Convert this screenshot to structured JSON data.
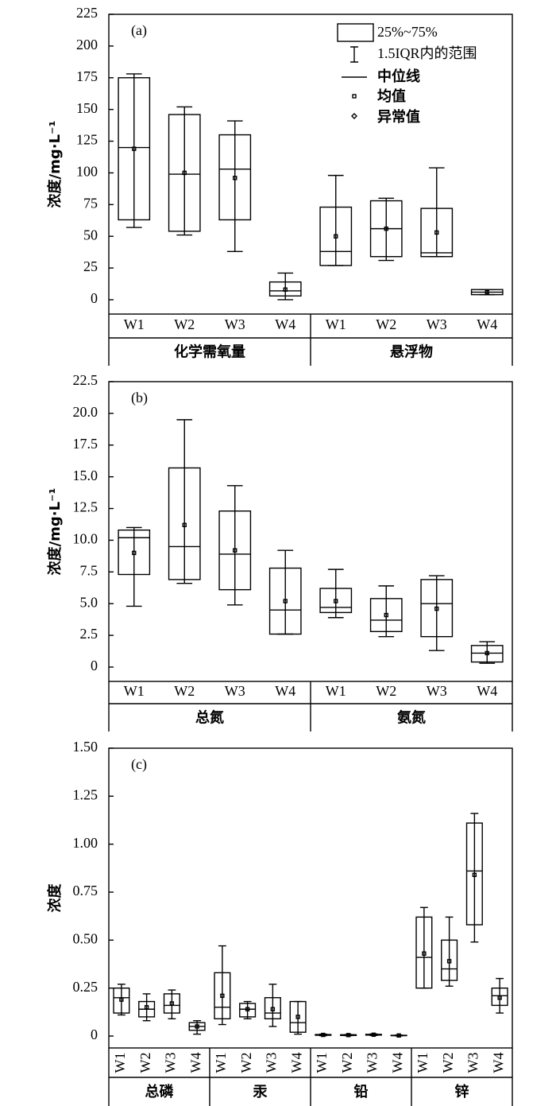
{
  "chart_data": [
    {
      "type": "box",
      "panel_label": "(a)",
      "ylabel": "浓度/mg·L⁻¹",
      "ylim": [
        -11.3,
        225
      ],
      "yticks": [
        0,
        25,
        50,
        75,
        100,
        125,
        150,
        175,
        200,
        225
      ],
      "categories": [
        "W1",
        "W2",
        "W3",
        "W4",
        "W1",
        "W2",
        "W3",
        "W4"
      ],
      "groups": [
        "化学需氧量",
        "悬浮物"
      ],
      "legend": [
        "25%~75%",
        "1.5IQR内的范围",
        "中位线",
        "均值",
        "异常值"
      ],
      "boxes": [
        {
          "whislo": 57,
          "q1": 63,
          "med": 120,
          "q3": 175,
          "whishi": 178,
          "mean": 119
        },
        {
          "whislo": 51,
          "q1": 54,
          "med": 99,
          "q3": 146,
          "whishi": 152,
          "mean": 100
        },
        {
          "whislo": 38,
          "q1": 63,
          "med": 103,
          "q3": 130,
          "whishi": 141,
          "mean": 96
        },
        {
          "whislo": 0,
          "q1": 3,
          "med": 7,
          "q3": 14,
          "whishi": 21,
          "mean": 8
        },
        {
          "whislo": 27,
          "q1": 27,
          "med": 38,
          "q3": 73,
          "whishi": 98,
          "mean": 50
        },
        {
          "whislo": 31,
          "q1": 34,
          "med": 56,
          "q3": 78,
          "whishi": 80,
          "mean": 56
        },
        {
          "whislo": 34,
          "q1": 34,
          "med": 37,
          "q3": 72,
          "whishi": 104,
          "mean": 53
        },
        {
          "whislo": 4,
          "q1": 4,
          "med": 6,
          "q3": 8,
          "whishi": 8,
          "mean": 6
        }
      ]
    },
    {
      "type": "box",
      "panel_label": "(b)",
      "ylabel": "浓度/mg·L⁻¹",
      "ylim": [
        -1.13,
        22.5
      ],
      "yticks": [
        0,
        2.5,
        {
          "value": 5,
          "label": "5.0"
        },
        7.5,
        {
          "value": 10,
          "label": "10.0"
        },
        12.5,
        {
          "value": 15,
          "label": "15.0"
        },
        17.5,
        {
          "value": 20,
          "label": "20.0"
        },
        22.5
      ],
      "categories": [
        "W1",
        "W2",
        "W3",
        "W4",
        "W1",
        "W2",
        "W3",
        "W4"
      ],
      "groups": [
        "总氮",
        "氨氮"
      ],
      "boxes": [
        {
          "whislo": 4.8,
          "q1": 7.3,
          "med": 10.2,
          "q3": 10.8,
          "whishi": 11.0,
          "mean": 9.0
        },
        {
          "whislo": 6.6,
          "q1": 6.9,
          "med": 9.5,
          "q3": 15.7,
          "whishi": 19.5,
          "mean": 11.2
        },
        {
          "whislo": 4.9,
          "q1": 6.1,
          "med": 8.9,
          "q3": 12.3,
          "whishi": 14.3,
          "mean": 9.2
        },
        {
          "whislo": 2.6,
          "q1": 2.6,
          "med": 4.5,
          "q3": 7.8,
          "whishi": 9.2,
          "mean": 5.2
        },
        {
          "whislo": 3.9,
          "q1": 4.3,
          "med": 4.7,
          "q3": 6.2,
          "whishi": 7.7,
          "mean": 5.2
        },
        {
          "whislo": 2.4,
          "q1": 2.8,
          "med": 3.7,
          "q3": 5.4,
          "whishi": 6.4,
          "mean": 4.1
        },
        {
          "whislo": 1.3,
          "q1": 2.4,
          "med": 5.0,
          "q3": 6.9,
          "whishi": 7.2,
          "mean": 4.6
        },
        {
          "whislo": 0.3,
          "q1": 0.4,
          "med": 1.1,
          "q3": 1.7,
          "whishi": 2.0,
          "mean": 1.1
        }
      ]
    },
    {
      "type": "box",
      "panel_label": "(c)",
      "ylabel": "浓度",
      "ylim": [
        -0.062,
        1.5
      ],
      "yticks": [
        0,
        0.25,
        {
          "value": 0.5,
          "label": "0.50"
        },
        0.75,
        {
          "value": 1,
          "label": "1.00"
        },
        1.25,
        {
          "value": 1.5,
          "label": "1.50"
        }
      ],
      "categories": [
        "W1",
        "W2",
        "W3",
        "W4",
        "W1",
        "W2",
        "W3",
        "W4",
        "W1",
        "W2",
        "W3",
        "W4",
        "W1",
        "W2",
        "W3",
        "W4"
      ],
      "groups": [
        "总磷",
        "汞",
        "铅",
        "锌"
      ],
      "rotate_categories": true,
      "boxes": [
        {
          "whislo": 0.11,
          "q1": 0.12,
          "med": 0.2,
          "q3": 0.25,
          "whishi": 0.27,
          "mean": 0.19
        },
        {
          "whislo": 0.08,
          "q1": 0.1,
          "med": 0.14,
          "q3": 0.18,
          "whishi": 0.22,
          "mean": 0.15
        },
        {
          "whislo": 0.09,
          "q1": 0.12,
          "med": 0.16,
          "q3": 0.22,
          "whishi": 0.24,
          "mean": 0.17
        },
        {
          "whislo": 0.01,
          "q1": 0.03,
          "med": 0.05,
          "q3": 0.07,
          "whishi": 0.08,
          "mean": 0.05
        },
        {
          "whislo": 0.06,
          "q1": 0.09,
          "med": 0.15,
          "q3": 0.33,
          "whishi": 0.47,
          "mean": 0.21
        },
        {
          "whislo": 0.09,
          "q1": 0.1,
          "med": 0.14,
          "q3": 0.17,
          "whishi": 0.18,
          "mean": 0.14
        },
        {
          "whislo": 0.05,
          "q1": 0.09,
          "med": 0.12,
          "q3": 0.2,
          "whishi": 0.27,
          "mean": 0.14
        },
        {
          "whislo": 0.01,
          "q1": 0.02,
          "med": 0.07,
          "q3": 0.18,
          "whishi": 0.18,
          "mean": 0.1
        },
        {
          "whislo": 0.002,
          "q1": 0.004,
          "med": 0.006,
          "q3": 0.008,
          "whishi": 0.01,
          "mean": 0.006
        },
        {
          "whislo": 0.002,
          "q1": 0.003,
          "med": 0.005,
          "q3": 0.007,
          "whishi": 0.008,
          "mean": 0.005
        },
        {
          "whislo": 0.003,
          "q1": 0.005,
          "med": 0.007,
          "q3": 0.009,
          "whishi": 0.011,
          "mean": 0.007
        },
        {
          "whislo": 0.001,
          "q1": 0.002,
          "med": 0.003,
          "q3": 0.004,
          "whishi": 0.005,
          "mean": 0.003
        },
        {
          "whislo": 0.25,
          "q1": 0.25,
          "med": 0.41,
          "q3": 0.62,
          "whishi": 0.67,
          "mean": 0.43
        },
        {
          "whislo": 0.26,
          "q1": 0.29,
          "med": 0.35,
          "q3": 0.5,
          "whishi": 0.62,
          "mean": 0.39
        },
        {
          "whislo": 0.49,
          "q1": 0.58,
          "med": 0.86,
          "q3": 1.11,
          "whishi": 1.16,
          "mean": 0.84
        },
        {
          "whislo": 0.12,
          "q1": 0.16,
          "med": 0.21,
          "q3": 0.25,
          "whishi": 0.3,
          "mean": 0.2
        }
      ]
    }
  ]
}
